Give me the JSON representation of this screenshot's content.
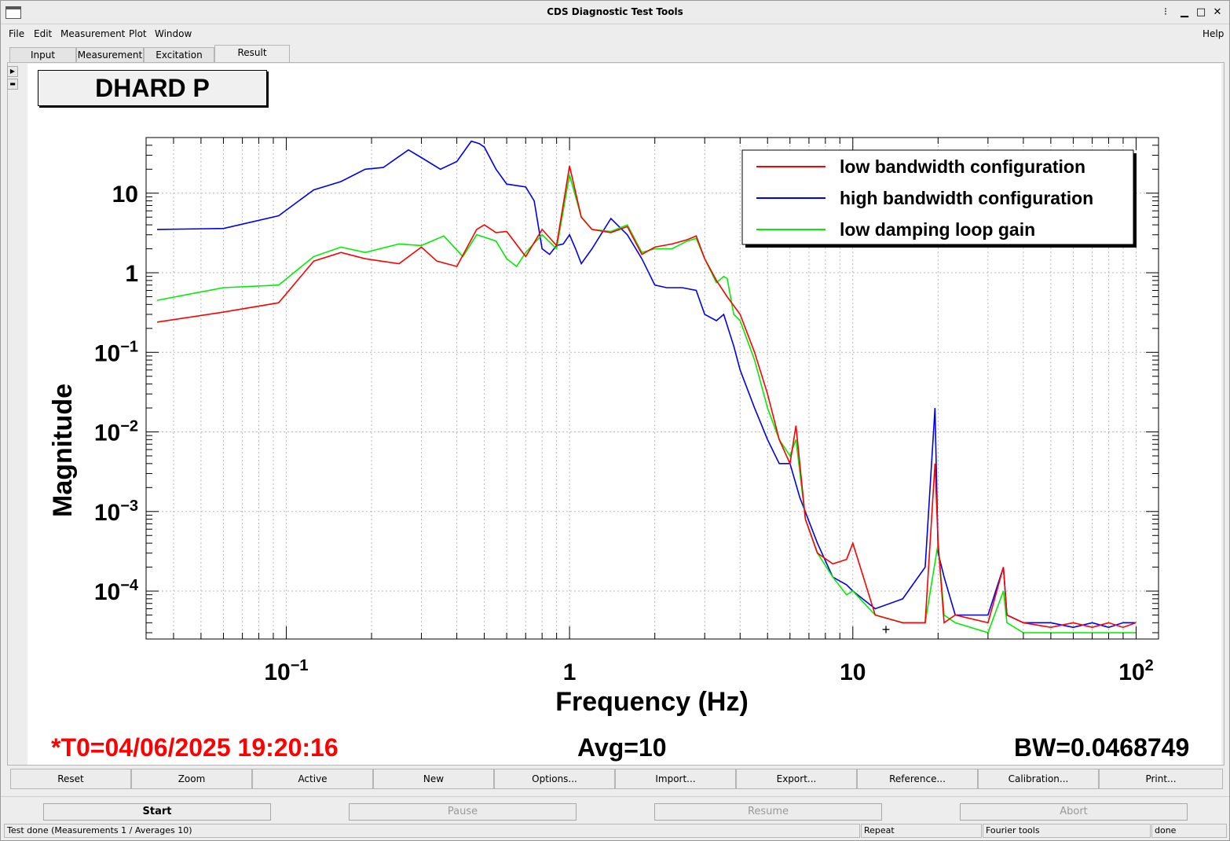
{
  "window": {
    "title": "CDS Diagnostic Test Tools"
  },
  "menus": {
    "file": "File",
    "edit": "Edit",
    "measurement": "Measurement",
    "plot": "Plot",
    "window": "Window",
    "help": "Help"
  },
  "tabs": [
    "Input",
    "Measurement",
    "Excitation",
    "Result"
  ],
  "plot": {
    "title": "DHARD P",
    "footer": {
      "t0": "*T0=04/06/2025 19:20:16",
      "avg": "Avg=10",
      "bw": "BW=0.0468749"
    },
    "colors": {
      "red": "#ff0000",
      "blue": "#0000ee",
      "green": "#00ee00"
    }
  },
  "chart_data": {
    "type": "line",
    "xlabel": "Frequency (Hz)",
    "ylabel": "Magnitude",
    "xscale": "log",
    "yscale": "log",
    "xlim": [
      0.032,
      120
    ],
    "ylim": [
      2.5e-05,
      50
    ],
    "grid": true,
    "legend_position": "top-right",
    "x_tick_labels": [
      {
        "base": "10",
        "exp": "−1"
      },
      {
        "base": "1",
        "exp": ""
      },
      {
        "base": "10",
        "exp": ""
      },
      {
        "base": "10",
        "exp": "2"
      }
    ],
    "y_tick_labels": [
      {
        "base": "10",
        "exp": ""
      },
      {
        "base": "1",
        "exp": ""
      },
      {
        "base": "10",
        "exp": "−1"
      },
      {
        "base": "10",
        "exp": "−2"
      },
      {
        "base": "10",
        "exp": "−3"
      },
      {
        "base": "10",
        "exp": "−4"
      }
    ],
    "series": [
      {
        "name": "low bandwidth configuration",
        "color": "#ff0000",
        "x": [
          0.035,
          0.06,
          0.094,
          0.125,
          0.156,
          0.19,
          0.25,
          0.3,
          0.34,
          0.4,
          0.47,
          0.5,
          0.55,
          0.6,
          0.7,
          0.8,
          0.9,
          1.0,
          1.1,
          1.2,
          1.4,
          1.6,
          1.8,
          2.0,
          2.3,
          2.6,
          2.8,
          3.0,
          3.3,
          3.6,
          4.0,
          4.5,
          5.0,
          5.5,
          6.0,
          6.3,
          6.8,
          7.5,
          8.5,
          9.5,
          10,
          12,
          15,
          18,
          19.5,
          20,
          21,
          23,
          30,
          34,
          35,
          40,
          50,
          60,
          70,
          80,
          90,
          100
        ],
        "y": [
          0.24,
          0.32,
          0.42,
          1.4,
          1.8,
          1.5,
          1.3,
          2.1,
          1.4,
          1.2,
          3.5,
          4.0,
          3.2,
          3.3,
          1.6,
          3.5,
          2.2,
          22,
          5.0,
          3.5,
          3.2,
          3.8,
          1.7,
          2.1,
          2.3,
          2.6,
          2.9,
          1.5,
          0.8,
          0.5,
          0.3,
          0.1,
          0.03,
          0.008,
          0.004,
          0.012,
          0.0008,
          0.0003,
          0.00022,
          0.00025,
          0.0004,
          5e-05,
          4e-05,
          4e-05,
          0.004,
          0.0004,
          4e-05,
          5e-05,
          4e-05,
          0.0002,
          5e-05,
          4e-05,
          3.5e-05,
          4e-05,
          3.5e-05,
          4e-05,
          3.5e-05,
          4e-05
        ]
      },
      {
        "name": "high bandwidth configuration",
        "color": "#0000ee",
        "x": [
          0.035,
          0.06,
          0.094,
          0.125,
          0.156,
          0.19,
          0.22,
          0.27,
          0.3,
          0.35,
          0.4,
          0.45,
          0.48,
          0.5,
          0.55,
          0.6,
          0.7,
          0.75,
          0.8,
          0.85,
          0.9,
          0.95,
          1.0,
          1.05,
          1.1,
          1.2,
          1.4,
          1.6,
          1.8,
          2.0,
          2.2,
          2.5,
          2.8,
          3.0,
          3.3,
          3.5,
          3.8,
          4.0,
          4.5,
          5.0,
          5.5,
          6.0,
          6.5,
          7.5,
          8.5,
          9.5,
          10,
          12,
          15,
          18,
          19.5,
          20,
          21,
          23,
          30,
          34,
          35,
          40,
          50,
          60,
          70,
          80,
          90,
          100
        ],
        "y": [
          3.5,
          3.6,
          5.2,
          11,
          14,
          20,
          21,
          35,
          28,
          20,
          25,
          45,
          42,
          38,
          20,
          13,
          12,
          8,
          2.0,
          1.7,
          2.2,
          2.3,
          3.0,
          2.0,
          1.3,
          2.0,
          4.8,
          3.0,
          1.5,
          0.7,
          0.65,
          0.65,
          0.6,
          0.3,
          0.25,
          0.3,
          0.12,
          0.06,
          0.02,
          0.008,
          0.004,
          0.004,
          0.0015,
          0.0004,
          0.00015,
          0.00012,
          0.0001,
          6e-05,
          8e-05,
          0.0002,
          0.02,
          0.0003,
          0.00015,
          5e-05,
          5e-05,
          0.0002,
          5e-05,
          4e-05,
          4e-05,
          3.5e-05,
          4e-05,
          3.5e-05,
          4e-05,
          4e-05
        ]
      },
      {
        "name": "low damping loop gain",
        "color": "#00ee00",
        "x": [
          0.035,
          0.06,
          0.094,
          0.125,
          0.156,
          0.19,
          0.25,
          0.3,
          0.36,
          0.42,
          0.47,
          0.5,
          0.55,
          0.6,
          0.65,
          0.7,
          0.8,
          0.9,
          1.0,
          1.1,
          1.2,
          1.4,
          1.6,
          1.8,
          2.0,
          2.3,
          2.6,
          2.8,
          3.0,
          3.3,
          3.5,
          3.6,
          3.8,
          4.0,
          4.5,
          5.0,
          5.5,
          6.0,
          6.3,
          6.8,
          7.5,
          8.5,
          9.5,
          10,
          12,
          15,
          18,
          20,
          21,
          23,
          30,
          34,
          35,
          40,
          50,
          60,
          70,
          80,
          90,
          100
        ],
        "y": [
          0.45,
          0.65,
          0.7,
          1.6,
          2.1,
          1.8,
          2.3,
          2.2,
          2.9,
          1.6,
          3.0,
          2.8,
          2.5,
          1.5,
          1.2,
          1.8,
          3.0,
          2.0,
          17,
          5.0,
          3.5,
          3.3,
          4.0,
          1.8,
          2.0,
          2.0,
          2.5,
          2.7,
          1.5,
          0.75,
          0.9,
          0.85,
          0.3,
          0.25,
          0.08,
          0.02,
          0.008,
          0.005,
          0.008,
          0.0008,
          0.0003,
          0.00015,
          9e-05,
          0.0001,
          5e-05,
          4e-05,
          4e-05,
          0.0004,
          5e-05,
          4e-05,
          3e-05,
          0.0001,
          4e-05,
          3e-05,
          3e-05,
          3e-05,
          3e-05,
          3e-05,
          3e-05,
          3e-05
        ]
      }
    ]
  },
  "buttons": [
    "Reset",
    "Zoom",
    "Active",
    "New",
    "Options...",
    "Import...",
    "Export...",
    "Reference...",
    "Calibration...",
    "Print..."
  ],
  "controls": {
    "start": "Start",
    "pause": "Pause",
    "resume": "Resume",
    "abort": "Abort"
  },
  "status": {
    "main": "Test done (Measurements 1 / Averages 10)",
    "repeat": "Repeat",
    "tool": "Fourier tools",
    "state": "done"
  }
}
